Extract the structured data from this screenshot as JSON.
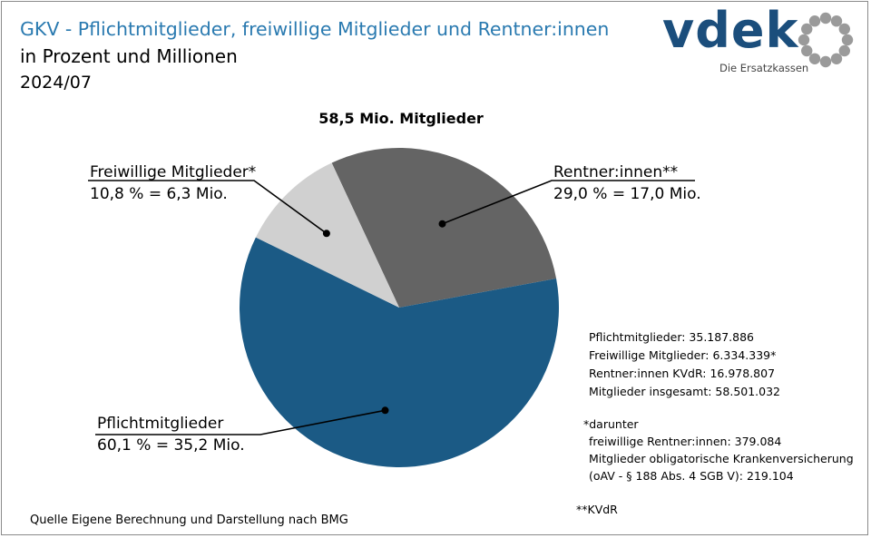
{
  "header": {
    "title": "GKV - Pflichtmitglieder, freiwillige Mitglieder und Rentner:innen",
    "subtitle": "in Prozent und Millionen",
    "period": "2024/07"
  },
  "logo": {
    "wordmark": "vdek",
    "tagline": "Die Ersatzkassen",
    "color": "#1b4e7c"
  },
  "chart_data": {
    "type": "pie",
    "title": "58,5 Mio. Mitglieder",
    "slices": [
      {
        "name": "Rentner:innen**",
        "label": "29,0 % = 17,0 Mio.",
        "percent": 29.0,
        "value_mio": 17.0,
        "color": "#646464"
      },
      {
        "name": "Pflichtmitglieder",
        "label": "60,1 % = 35,2 Mio.",
        "percent": 60.1,
        "value_mio": 35.2,
        "color": "#1b5a85"
      },
      {
        "name": "Freiwillige Mitglieder*",
        "label": "10,8 % = 6,3 Mio.",
        "percent": 10.8,
        "value_mio": 6.3,
        "color": "#d0d0d0"
      }
    ]
  },
  "stats": {
    "pflicht": "Pflichtmitglieder: 35.187.886",
    "freiwillig": "Freiwillige Mitglieder: 6.334.339*",
    "rentner": "Rentner:innen KVdR: 16.978.807",
    "gesamt": "Mitglieder insgesamt: 58.501.032"
  },
  "notes": {
    "star": "*darunter",
    "line1": "freiwillige Rentner:innen: 379.084",
    "line2": "Mitglieder obligatorische Krankenversicherung",
    "line3": "(oAV - § 188 Abs. 4 SGB V): 219.104",
    "kvdr": "**KVdR"
  },
  "source": "Quelle Eigene Berechnung und Darstellung nach BMG"
}
